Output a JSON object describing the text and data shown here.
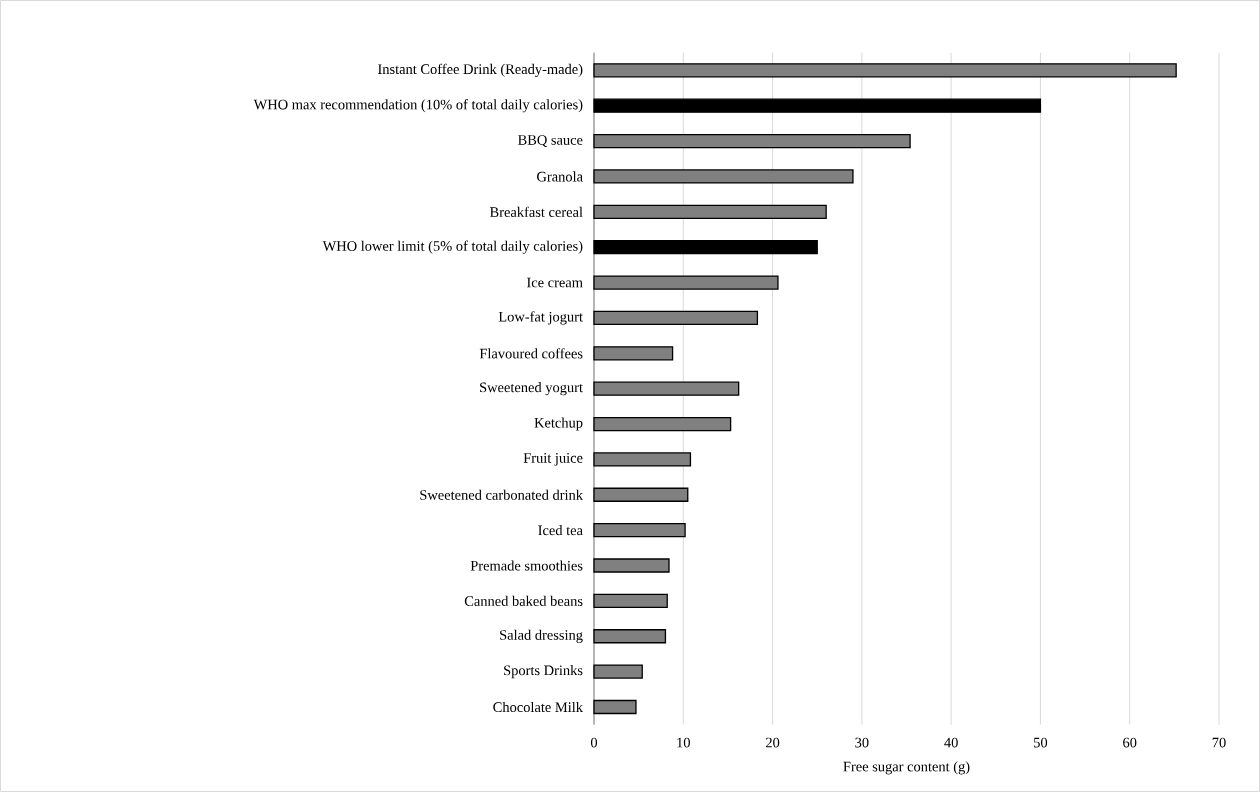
{
  "chart_data": {
    "type": "bar",
    "orientation": "horizontal",
    "xlabel": "Free sugar content (g)",
    "categories": [
      "Instant Coffee Drink (Ready-made)",
      "WHO max recommendation  (10% of total daily calories)",
      "BBQ sauce",
      "Granola",
      "Breakfast cereal",
      "WHO lower limit (5% of total daily calories)",
      "Ice cream",
      "Low-fat jogurt",
      "Flavoured coffees",
      "Sweetened yogurt",
      "Ketchup",
      "Fruit juice",
      "Sweetened carbonated drink",
      "Iced tea",
      "Premade smoothies",
      "Canned baked beans",
      "Salad dressing",
      "Sports Drinks",
      "Chocolate Milk"
    ],
    "values": [
      65.2,
      50,
      35.4,
      29.0,
      26.0,
      25,
      20.6,
      18.3,
      8.8,
      16.2,
      15.3,
      10.8,
      10.5,
      10.2,
      8.4,
      8.2,
      8.0,
      5.4,
      4.7
    ],
    "colors": [
      "#808080",
      "#000000",
      "#808080",
      "#808080",
      "#808080",
      "#000000",
      "#808080",
      "#808080",
      "#808080",
      "#808080",
      "#808080",
      "#808080",
      "#808080",
      "#808080",
      "#808080",
      "#808080",
      "#808080",
      "#808080",
      "#808080"
    ],
    "xlim": [
      0,
      70
    ],
    "xticks": [
      0,
      10,
      20,
      30,
      40,
      50,
      60,
      70
    ],
    "grid": "x"
  }
}
